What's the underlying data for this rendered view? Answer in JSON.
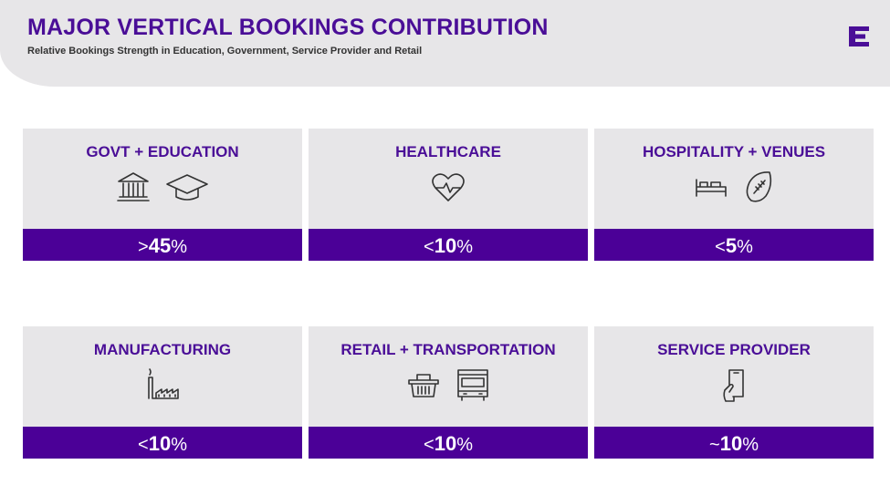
{
  "header": {
    "title": "MAJOR VERTICAL BOOKINGS CONTRIBUTION",
    "subtitle": "Relative Bookings Strength in Education, Government, Service Provider and Retail"
  },
  "cards": [
    {
      "name": "GOVT + EDUCATION",
      "qualifier": ">",
      "figure": 45,
      "unit": "%"
    },
    {
      "name": "HEALTHCARE",
      "qualifier": "<",
      "figure": 10,
      "unit": "%"
    },
    {
      "name": "HOSPITALITY + VENUES",
      "qualifier": "<",
      "figure": 5,
      "unit": "%"
    },
    {
      "name": "MANUFACTURING",
      "qualifier": "<",
      "figure": 10,
      "unit": "%"
    },
    {
      "name": "RETAIL + TRANSPORTATION",
      "qualifier": "<",
      "figure": 10,
      "unit": "%"
    },
    {
      "name": "SERVICE PROVIDER",
      "qualifier": "~",
      "figure": 10,
      "unit": "%"
    }
  ]
}
